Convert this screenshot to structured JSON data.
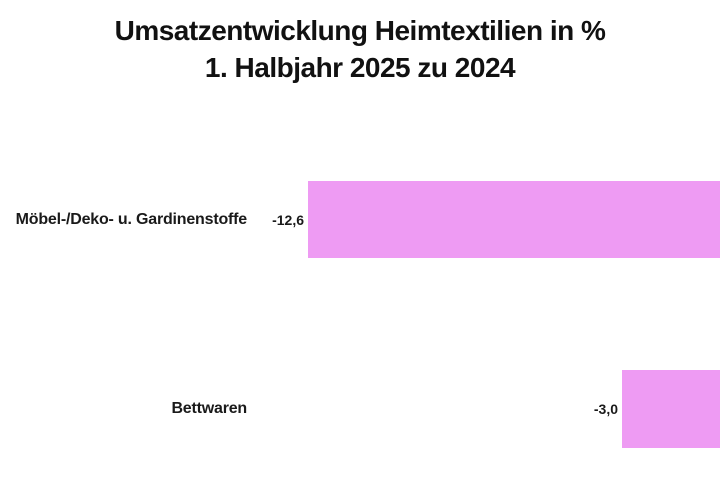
{
  "chart_data": {
    "type": "bar",
    "orientation": "horizontal",
    "title": "Umsatzentwicklung Heimtextilien in %",
    "subtitle": "1. Halbjahr 2025 zu 2024",
    "categories": [
      "Möbel-/Deko- u. Gardinenstoffe",
      "Bettwaren"
    ],
    "values": [
      -12.6,
      -3.0
    ],
    "value_labels": [
      "-12,6",
      "-3,0"
    ],
    "xlabel": "",
    "ylabel": "",
    "xlim": [
      -22,
      0
    ],
    "zero_baseline": "right-edge",
    "grid": false,
    "legend": false,
    "bar_color": "#ee9bf3",
    "title_color": "#111111",
    "label_color": "#1a1a1a",
    "background_color": "#ffffff"
  }
}
